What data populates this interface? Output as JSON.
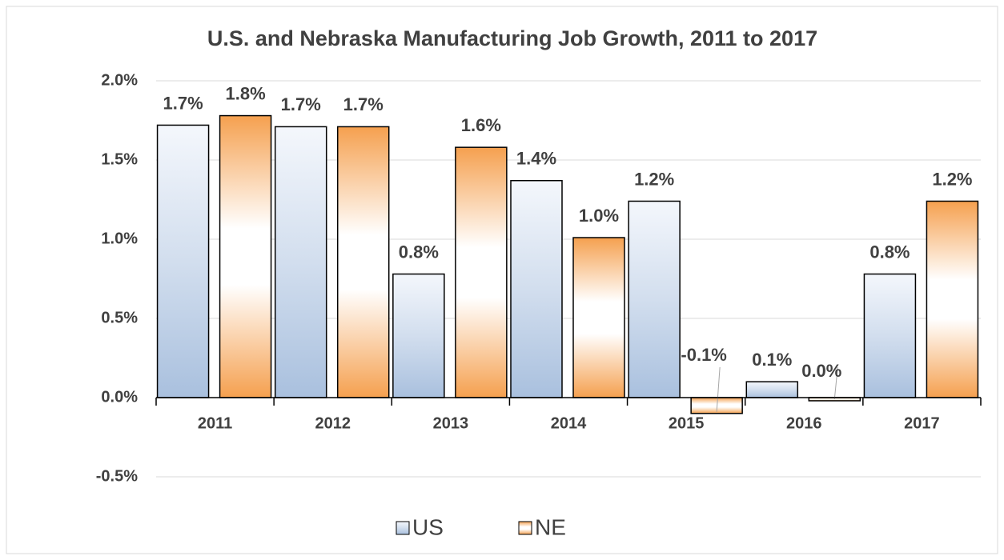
{
  "chart_data": {
    "type": "bar",
    "title": "U.S. and Nebraska Manufacturing Job Growth, 2011 to 2017",
    "categories": [
      "2011",
      "2012",
      "2013",
      "2014",
      "2015",
      "2016",
      "2017"
    ],
    "series": [
      {
        "name": "US",
        "color": "#a9c0de",
        "values": [
          1.72,
          1.71,
          0.78,
          1.37,
          1.24,
          0.1,
          0.78
        ],
        "value_labels": [
          "1.7%",
          "1.7%",
          "0.8%",
          "1.4%",
          "1.2%",
          "0.1%",
          "0.8%"
        ]
      },
      {
        "name": "NE",
        "color": "#f5a04f",
        "values": [
          1.78,
          1.71,
          1.58,
          1.01,
          -0.1,
          -0.02,
          1.24
        ],
        "value_labels": [
          "1.8%",
          "1.7%",
          "1.6%",
          "1.0%",
          "-0.1%",
          "0.0%",
          "1.2%"
        ]
      }
    ],
    "ylim": [
      -0.5,
      2.0
    ],
    "yticks": [
      {
        "value": -0.5,
        "label": "-0.5%"
      },
      {
        "value": 0,
        "label": "0.0%"
      },
      {
        "value": 0.5,
        "label": "0.5%"
      },
      {
        "value": 1.0,
        "label": "1.0%"
      },
      {
        "value": 1.5,
        "label": "1.5%"
      },
      {
        "value": 2.0,
        "label": "2.0%"
      }
    ],
    "grid": true,
    "legend": "bottom"
  }
}
